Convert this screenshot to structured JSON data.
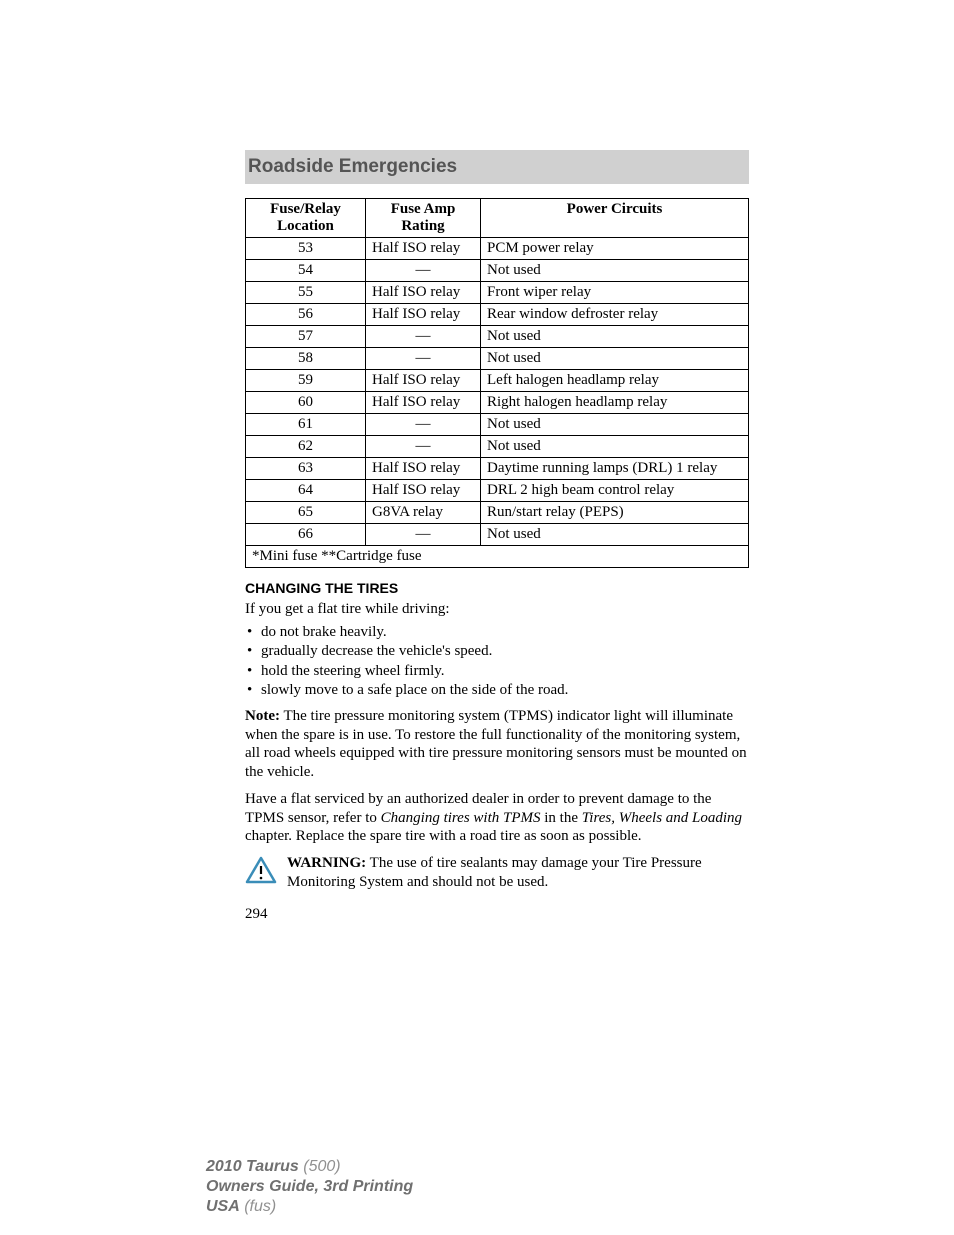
{
  "section_title": "Roadside Emergencies",
  "table": {
    "headers": {
      "col1_line1": "Fuse/Relay",
      "col1_line2": "Location",
      "col2_line1": "Fuse Amp",
      "col2_line2": "Rating",
      "col3": "Power Circuits"
    },
    "rows": [
      {
        "loc": "53",
        "rating": "Half ISO relay",
        "circuit": "PCM power relay"
      },
      {
        "loc": "54",
        "rating": "—",
        "circuit": "Not used"
      },
      {
        "loc": "55",
        "rating": "Half ISO relay",
        "circuit": "Front wiper relay"
      },
      {
        "loc": "56",
        "rating": "Half ISO relay",
        "circuit": "Rear window defroster relay"
      },
      {
        "loc": "57",
        "rating": "—",
        "circuit": "Not used"
      },
      {
        "loc": "58",
        "rating": "—",
        "circuit": "Not used"
      },
      {
        "loc": "59",
        "rating": "Half ISO relay",
        "circuit": "Left halogen headlamp relay"
      },
      {
        "loc": "60",
        "rating": "Half ISO relay",
        "circuit": "Right halogen headlamp relay"
      },
      {
        "loc": "61",
        "rating": "—",
        "circuit": "Not used"
      },
      {
        "loc": "62",
        "rating": "—",
        "circuit": "Not used"
      },
      {
        "loc": "63",
        "rating": "Half ISO relay",
        "circuit": "Daytime running lamps (DRL) 1 relay"
      },
      {
        "loc": "64",
        "rating": "Half ISO relay",
        "circuit": "DRL 2 high beam control relay"
      },
      {
        "loc": "65",
        "rating": "G8VA relay",
        "circuit": "Run/start relay (PEPS)"
      },
      {
        "loc": "66",
        "rating": "—",
        "circuit": "Not used"
      }
    ],
    "footnote": "*Mini fuse **Cartridge fuse"
  },
  "subheading": "CHANGING THE TIRES",
  "intro": "If you get a flat tire while driving:",
  "bullets": [
    "do not brake heavily.",
    "gradually decrease the vehicle's speed.",
    "hold the steering wheel firmly.",
    "slowly move to a safe place on the side of the road."
  ],
  "note": {
    "label": "Note:",
    "text": " The tire pressure monitoring system (TPMS) indicator light will illuminate when the spare is in use. To restore the full functionality of the monitoring system, all road wheels equipped with tire pressure monitoring sensors must be mounted on the vehicle."
  },
  "service": {
    "part1": "Have a flat serviced by an authorized dealer in order to prevent damage to the TPMS sensor, refer to ",
    "italic1": "Changing tires with TPMS",
    "part2": " in the ",
    "italic2": "Tires, Wheels and Loading",
    "part3": " chapter. Replace the spare tire with a road tire as soon as possible."
  },
  "warning": {
    "label": "WARNING:",
    "text": " The use of tire sealants may damage your Tire Pressure Monitoring System and should not be used.",
    "icon_colors": {
      "stroke": "#3a8db8",
      "fill": "#ffffff",
      "exclaim": "#000000"
    }
  },
  "page_number": "294",
  "footer": {
    "model": "2010 Taurus",
    "model_code": " (500)",
    "guide": "Owners Guide, 3rd Printing",
    "region": "USA",
    "region_code": " (fus)"
  }
}
